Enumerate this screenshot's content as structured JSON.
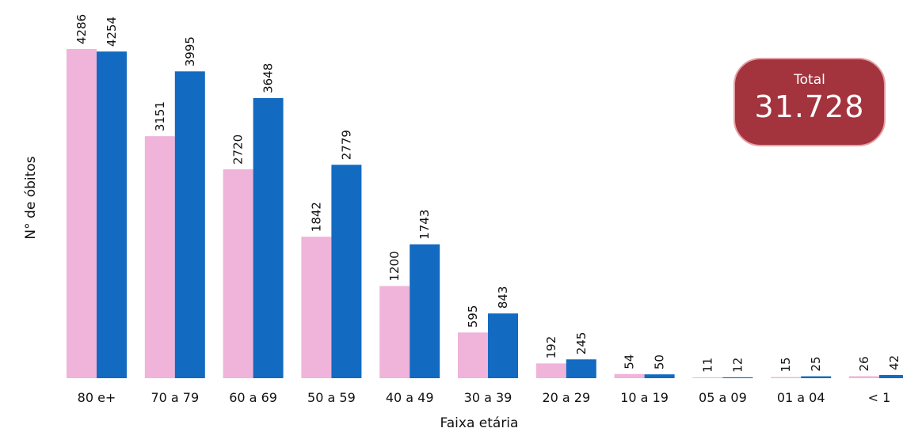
{
  "chart_data": {
    "type": "bar",
    "xlabel": "Faixa etária",
    "ylabel": "N° de óbitos",
    "categories": [
      "80 e+",
      "70 a 79",
      "60 a 69",
      "50 a 59",
      "40 a 49",
      "30 a 39",
      "20 a 29",
      "10 a 19",
      "05 a 09",
      "01 a 04",
      "< 1"
    ],
    "series": [
      {
        "color": "#f0b3da",
        "values": [
          4286,
          3151,
          2720,
          1842,
          1200,
          595,
          192,
          54,
          11,
          15,
          26
        ]
      },
      {
        "color": "#126ac1",
        "values": [
          4254,
          3995,
          3648,
          2779,
          1743,
          843,
          245,
          50,
          12,
          25,
          42
        ]
      }
    ],
    "ylim": [
      0,
      4286
    ],
    "grid": false,
    "legend": "none"
  },
  "total": {
    "label": "Total",
    "value": "31.728"
  }
}
